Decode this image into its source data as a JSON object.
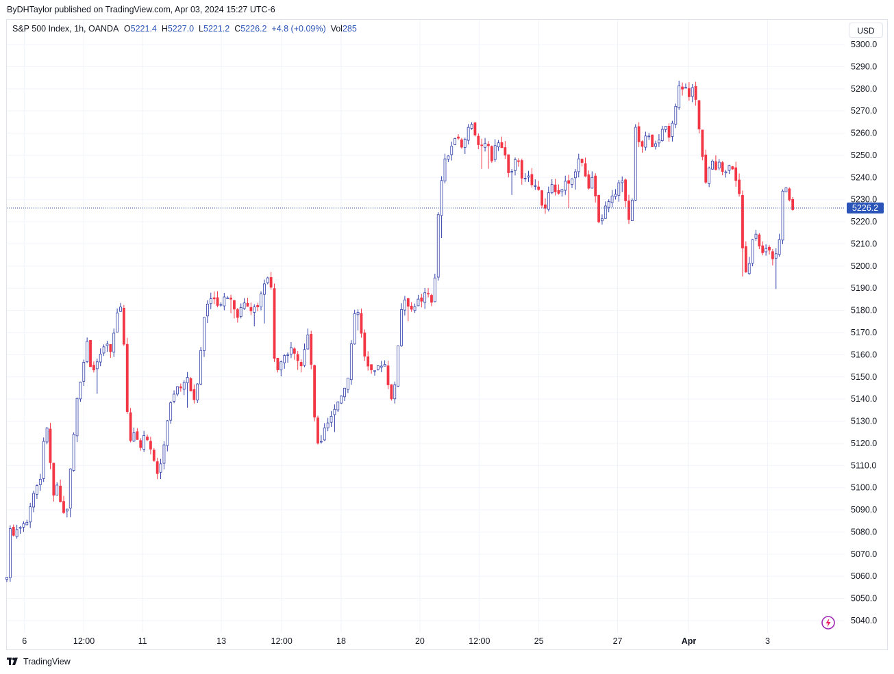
{
  "publisher_line": "ByDHTaylor published on TradingView.com, Apr 03, 2024 15:27 UTC-6",
  "legend": {
    "symbol": "S&P 500 Index, 1h, OANDA",
    "o_label": "O",
    "o_value": "5221.4",
    "h_label": "H",
    "h_value": "5227.0",
    "l_label": "L",
    "l_value": "5221.2",
    "c_label": "C",
    "c_value": "5226.2",
    "change": "+4.8 (+0.09%)",
    "vol_label": "Vol",
    "vol_value": "285"
  },
  "currency_button": "USD",
  "footer_brand": "TradingView",
  "icons": {
    "logo": "tradingview-logo-icon",
    "flash": "lightning-icon"
  },
  "colors": {
    "up": "#2f3fa8",
    "down": "#f23645",
    "last_price": "#2a54b8",
    "grid": "#f0f3fa",
    "axis_text": "#131722"
  },
  "chart_data": {
    "type": "candlestick",
    "title": "S&P 500 Index, 1h, OANDA",
    "ylim": [
      5035,
      5305
    ],
    "y_ticks": [
      5300.0,
      5290.0,
      5280.0,
      5270.0,
      5260.0,
      5250.0,
      5240.0,
      5230.0,
      5220.0,
      5210.0,
      5200.0,
      5190.0,
      5180.0,
      5170.0,
      5160.0,
      5150.0,
      5140.0,
      5130.0,
      5120.0,
      5110.0,
      5100.0,
      5090.0,
      5080.0,
      5070.0,
      5060.0,
      5050.0,
      5040.0
    ],
    "x_tick_labels": [
      "6",
      "12:00",
      "11",
      "13",
      "12:00",
      "18",
      "20",
      "12:00",
      "25",
      "27",
      "Apr",
      "3"
    ],
    "x_tick_positions": [
      0.021,
      0.092,
      0.162,
      0.256,
      0.328,
      0.399,
      0.493,
      0.564,
      0.635,
      0.729,
      0.814,
      0.908
    ],
    "last_price": 5226.2,
    "grid": true,
    "close_path": [
      [
        0.0,
        5058
      ],
      [
        0.004,
        5083
      ],
      [
        0.008,
        5080
      ],
      [
        0.016,
        5084
      ],
      [
        0.024,
        5086
      ],
      [
        0.032,
        5098
      ],
      [
        0.04,
        5105
      ],
      [
        0.044,
        5120
      ],
      [
        0.048,
        5128
      ],
      [
        0.052,
        5110
      ],
      [
        0.056,
        5096
      ],
      [
        0.06,
        5100
      ],
      [
        0.064,
        5092
      ],
      [
        0.068,
        5088
      ],
      [
        0.072,
        5092
      ],
      [
        0.076,
        5108
      ],
      [
        0.08,
        5125
      ],
      [
        0.084,
        5140
      ],
      [
        0.088,
        5150
      ],
      [
        0.092,
        5155
      ],
      [
        0.096,
        5165
      ],
      [
        0.1,
        5156
      ],
      [
        0.104,
        5154
      ],
      [
        0.108,
        5157
      ],
      [
        0.112,
        5160
      ],
      [
        0.116,
        5162
      ],
      [
        0.12,
        5164
      ],
      [
        0.124,
        5160
      ],
      [
        0.128,
        5170
      ],
      [
        0.132,
        5180
      ],
      [
        0.136,
        5182
      ],
      [
        0.14,
        5165
      ],
      [
        0.144,
        5130
      ],
      [
        0.148,
        5120
      ],
      [
        0.152,
        5125
      ],
      [
        0.156,
        5122
      ],
      [
        0.16,
        5118
      ],
      [
        0.164,
        5122
      ],
      [
        0.168,
        5120
      ],
      [
        0.172,
        5115
      ],
      [
        0.176,
        5112
      ],
      [
        0.18,
        5106
      ],
      [
        0.184,
        5112
      ],
      [
        0.188,
        5122
      ],
      [
        0.192,
        5132
      ],
      [
        0.196,
        5138
      ],
      [
        0.2,
        5142
      ],
      [
        0.204,
        5146
      ],
      [
        0.208,
        5144
      ],
      [
        0.212,
        5150
      ],
      [
        0.216,
        5148
      ],
      [
        0.22,
        5144
      ],
      [
        0.224,
        5140
      ],
      [
        0.228,
        5150
      ],
      [
        0.232,
        5165
      ],
      [
        0.236,
        5178
      ],
      [
        0.24,
        5184
      ],
      [
        0.244,
        5186
      ],
      [
        0.248,
        5183
      ],
      [
        0.252,
        5182
      ],
      [
        0.256,
        5185
      ],
      [
        0.26,
        5186
      ],
      [
        0.264,
        5187
      ],
      [
        0.268,
        5185
      ],
      [
        0.272,
        5182
      ],
      [
        0.276,
        5178
      ],
      [
        0.28,
        5182
      ],
      [
        0.284,
        5184
      ],
      [
        0.288,
        5182
      ],
      [
        0.292,
        5180
      ],
      [
        0.296,
        5181
      ],
      [
        0.3,
        5183
      ],
      [
        0.304,
        5186
      ],
      [
        0.308,
        5192
      ],
      [
        0.312,
        5194
      ],
      [
        0.316,
        5188
      ],
      [
        0.318,
        5160
      ],
      [
        0.322,
        5152
      ],
      [
        0.326,
        5158
      ],
      [
        0.33,
        5160
      ],
      [
        0.334,
        5158
      ],
      [
        0.338,
        5162
      ],
      [
        0.342,
        5160
      ],
      [
        0.346,
        5156
      ],
      [
        0.35,
        5154
      ],
      [
        0.354,
        5158
      ],
      [
        0.358,
        5170
      ],
      [
        0.362,
        5165
      ],
      [
        0.366,
        5135
      ],
      [
        0.37,
        5120
      ],
      [
        0.374,
        5117
      ],
      [
        0.378,
        5125
      ],
      [
        0.382,
        5128
      ],
      [
        0.386,
        5130
      ],
      [
        0.39,
        5134
      ],
      [
        0.394,
        5138
      ],
      [
        0.398,
        5142
      ],
      [
        0.402,
        5144
      ],
      [
        0.406,
        5148
      ],
      [
        0.41,
        5160
      ],
      [
        0.414,
        5178
      ],
      [
        0.418,
        5182
      ],
      [
        0.422,
        5172
      ],
      [
        0.426,
        5162
      ],
      [
        0.43,
        5155
      ],
      [
        0.434,
        5152
      ],
      [
        0.438,
        5150
      ],
      [
        0.442,
        5154
      ],
      [
        0.446,
        5156
      ],
      [
        0.45,
        5158
      ],
      [
        0.454,
        5150
      ],
      [
        0.458,
        5142
      ],
      [
        0.462,
        5140
      ],
      [
        0.466,
        5160
      ],
      [
        0.47,
        5180
      ],
      [
        0.474,
        5186
      ],
      [
        0.478,
        5184
      ],
      [
        0.482,
        5182
      ],
      [
        0.486,
        5183
      ],
      [
        0.49,
        5184
      ],
      [
        0.494,
        5185
      ],
      [
        0.498,
        5186
      ],
      [
        0.502,
        5188
      ],
      [
        0.506,
        5185
      ],
      [
        0.51,
        5186
      ],
      [
        0.514,
        5220
      ],
      [
        0.518,
        5235
      ],
      [
        0.522,
        5246
      ],
      [
        0.526,
        5250
      ],
      [
        0.53,
        5254
      ],
      [
        0.534,
        5256
      ],
      [
        0.538,
        5258
      ],
      [
        0.542,
        5252
      ],
      [
        0.546,
        5256
      ],
      [
        0.55,
        5262
      ],
      [
        0.554,
        5266
      ],
      [
        0.558,
        5262
      ],
      [
        0.562,
        5256
      ],
      [
        0.566,
        5252
      ],
      [
        0.57,
        5255
      ],
      [
        0.574,
        5254
      ],
      [
        0.578,
        5248
      ],
      [
        0.582,
        5252
      ],
      [
        0.586,
        5257
      ],
      [
        0.59,
        5256
      ],
      [
        0.594,
        5250
      ],
      [
        0.598,
        5244
      ],
      [
        0.602,
        5240
      ],
      [
        0.606,
        5246
      ],
      [
        0.61,
        5250
      ],
      [
        0.614,
        5242
      ],
      [
        0.618,
        5238
      ],
      [
        0.622,
        5240
      ],
      [
        0.626,
        5237
      ],
      [
        0.63,
        5236
      ],
      [
        0.634,
        5235
      ],
      [
        0.638,
        5230
      ],
      [
        0.642,
        5226
      ],
      [
        0.646,
        5232
      ],
      [
        0.65,
        5236
      ],
      [
        0.654,
        5232
      ],
      [
        0.658,
        5230
      ],
      [
        0.662,
        5236
      ],
      [
        0.666,
        5238
      ],
      [
        0.67,
        5236
      ],
      [
        0.674,
        5238
      ],
      [
        0.678,
        5242
      ],
      [
        0.682,
        5246
      ],
      [
        0.686,
        5250
      ],
      [
        0.69,
        5240
      ],
      [
        0.694,
        5236
      ],
      [
        0.698,
        5240
      ],
      [
        0.702,
        5232
      ],
      [
        0.706,
        5218
      ],
      [
        0.71,
        5222
      ],
      [
        0.714,
        5226
      ],
      [
        0.718,
        5228
      ],
      [
        0.722,
        5230
      ],
      [
        0.726,
        5232
      ],
      [
        0.73,
        5236
      ],
      [
        0.734,
        5238
      ],
      [
        0.738,
        5232
      ],
      [
        0.742,
        5222
      ],
      [
        0.746,
        5228
      ],
      [
        0.75,
        5262
      ],
      [
        0.754,
        5256
      ],
      [
        0.758,
        5255
      ],
      [
        0.762,
        5257
      ],
      [
        0.766,
        5258
      ],
      [
        0.77,
        5256
      ],
      [
        0.774,
        5254
      ],
      [
        0.778,
        5258
      ],
      [
        0.782,
        5262
      ],
      [
        0.786,
        5262
      ],
      [
        0.79,
        5256
      ],
      [
        0.794,
        5262
      ],
      [
        0.798,
        5270
      ],
      [
        0.802,
        5280
      ],
      [
        0.806,
        5279
      ],
      [
        0.81,
        5280
      ],
      [
        0.814,
        5278
      ],
      [
        0.818,
        5280
      ],
      [
        0.822,
        5276
      ],
      [
        0.826,
        5262
      ],
      [
        0.83,
        5252
      ],
      [
        0.834,
        5238
      ],
      [
        0.838,
        5244
      ],
      [
        0.842,
        5246
      ],
      [
        0.846,
        5244
      ],
      [
        0.85,
        5245
      ],
      [
        0.854,
        5244
      ],
      [
        0.858,
        5242
      ],
      [
        0.862,
        5244
      ],
      [
        0.866,
        5246
      ],
      [
        0.87,
        5240
      ],
      [
        0.874,
        5232
      ],
      [
        0.876,
        5220
      ],
      [
        0.878,
        5210
      ],
      [
        0.882,
        5196
      ],
      [
        0.886,
        5200
      ],
      [
        0.89,
        5210
      ],
      [
        0.894,
        5216
      ],
      [
        0.898,
        5210
      ],
      [
        0.902,
        5208
      ],
      [
        0.906,
        5206
      ],
      [
        0.91,
        5208
      ],
      [
        0.914,
        5204
      ],
      [
        0.918,
        5206
      ],
      [
        0.922,
        5210
      ],
      [
        0.926,
        5232
      ],
      [
        0.93,
        5234
      ],
      [
        0.934,
        5230
      ],
      [
        0.938,
        5226
      ]
    ]
  }
}
